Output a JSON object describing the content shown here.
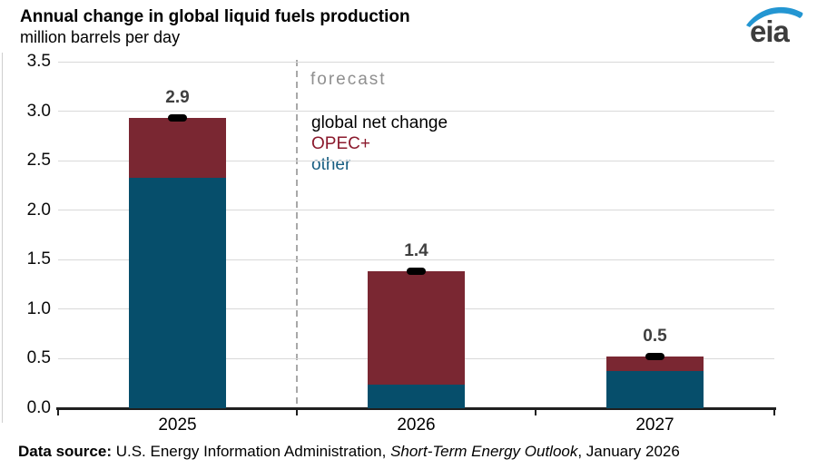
{
  "header": {
    "title": "Annual change in global liquid fuels production",
    "subtitle": "million barrels per day",
    "logo_text": "eia"
  },
  "chart_data": {
    "type": "bar",
    "stacked": true,
    "title": "Annual change in global liquid fuels production",
    "ylabel": "million barrels per day",
    "categories": [
      "2025",
      "2026",
      "2027"
    ],
    "series": [
      {
        "name": "other",
        "color": "#064e6b",
        "values": [
          2.33,
          0.24,
          0.38
        ]
      },
      {
        "name": "OPEC+",
        "color": "#7a2732",
        "values": [
          0.6,
          1.14,
          0.14
        ]
      }
    ],
    "markers": {
      "name": "global net change",
      "color": "#000000",
      "values": [
        2.93,
        1.38,
        0.52
      ]
    },
    "bar_labels": [
      "2.9",
      "1.4",
      "0.5"
    ],
    "y_ticks": [
      "0.0",
      "0.5",
      "1.0",
      "1.5",
      "2.0",
      "2.5",
      "3.0",
      "3.5"
    ],
    "ylim": [
      0,
      3.5
    ],
    "grid": "horizontal",
    "forecast_label": "forecast",
    "forecast_divider_after_category": "2025",
    "legend": {
      "position": "inside-upper-middle",
      "entries": [
        {
          "label": "global net change",
          "color": "#000000"
        },
        {
          "label": "OPEC+",
          "color": "#8b1a2d"
        },
        {
          "label": "other",
          "color": "#175d81"
        }
      ]
    },
    "colors": {
      "gridline": "#d9d9d9",
      "axis": "#1f1f1f",
      "value_label": "#3f3f3f",
      "forecast_text": "#8f8f8f"
    }
  },
  "footer": {
    "prefix": "Data source: ",
    "text": "U.S. Energy Information Administration, ",
    "italic": "Short-Term Energy Outlook",
    "suffix": ", January 2026"
  }
}
